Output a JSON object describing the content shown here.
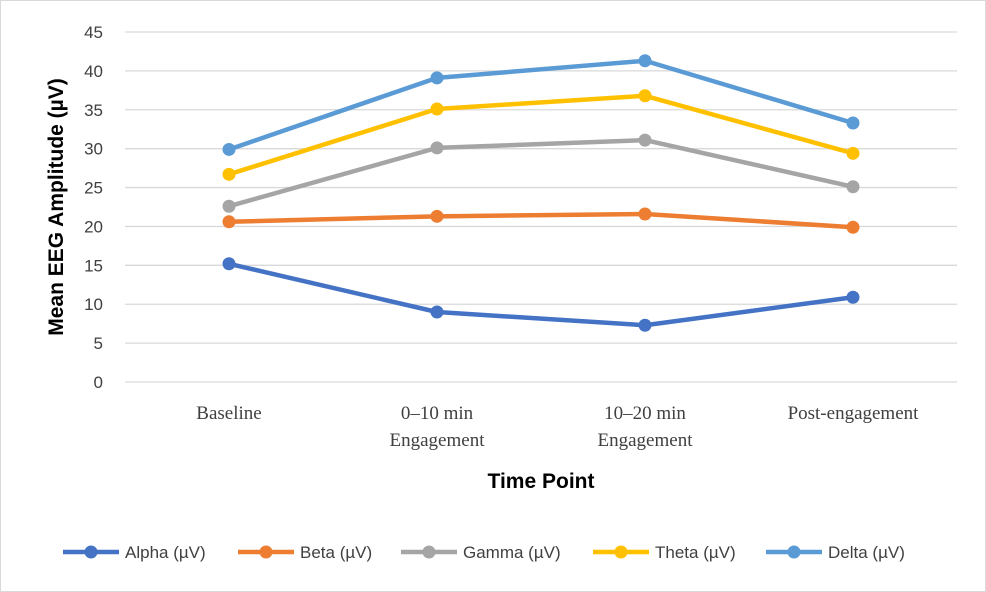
{
  "chart_data": {
    "type": "line",
    "categories": [
      [
        "Baseline"
      ],
      [
        "0–10 min",
        "Engagement"
      ],
      [
        "10–20 min",
        "Engagement"
      ],
      [
        "Post-engagement"
      ]
    ],
    "series": [
      {
        "name": "Alpha (µV)",
        "color": "#4472C4",
        "values": [
          15.2,
          9.0,
          7.3,
          10.9
        ]
      },
      {
        "name": "Beta (µV)",
        "color": "#ED7D31",
        "values": [
          20.6,
          21.3,
          21.6,
          19.9
        ]
      },
      {
        "name": "Gamma (µV)",
        "color": "#A5A5A5",
        "values": [
          22.6,
          30.1,
          31.1,
          25.1
        ]
      },
      {
        "name": "Theta (µV)",
        "color": "#FFC000",
        "values": [
          26.7,
          35.1,
          36.8,
          29.4
        ]
      },
      {
        "name": "Delta (µV)",
        "color": "#5B9BD5",
        "values": [
          29.9,
          39.1,
          41.3,
          33.3
        ]
      }
    ],
    "xlabel": "Time Point",
    "ylabel": "Mean EEG Amplitude (µV)",
    "ylim": [
      0,
      45
    ],
    "yticks": [
      0,
      5,
      10,
      15,
      20,
      25,
      30,
      35,
      40,
      45
    ],
    "grid": true,
    "legend": "bottom"
  }
}
